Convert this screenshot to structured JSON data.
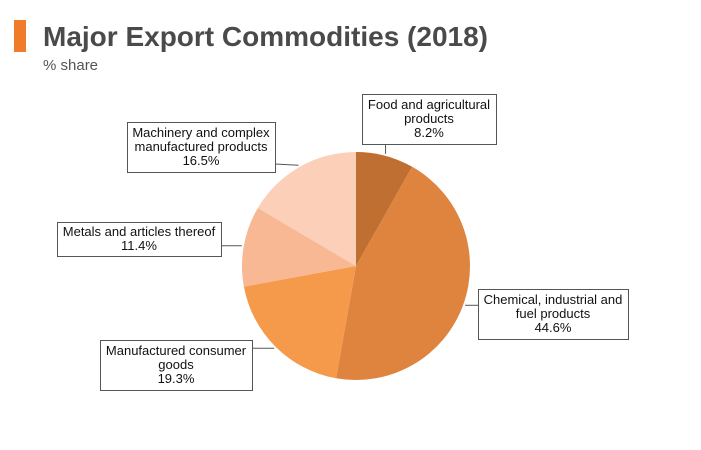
{
  "header": {
    "title": "Major Export Commodities (2018)",
    "subtitle": "% share",
    "accent_color": "#f07c29"
  },
  "chart_data": {
    "type": "pie",
    "title": "Major Export Commodities (2018)",
    "subtitle": "% share",
    "start": "12 o'clock, clockwise",
    "slices": [
      {
        "label": [
          "Food and agricultural",
          "products"
        ],
        "value": 8.2,
        "value_text": "8.2%",
        "color": "#bf6f32"
      },
      {
        "label": [
          "Chemical, industrial and",
          "fuel products"
        ],
        "value": 44.6,
        "value_text": "44.6%",
        "color": "#de843e"
      },
      {
        "label": [
          "Manufactured consumer",
          "goods"
        ],
        "value": 19.3,
        "value_text": "19.3%",
        "color": "#f59a4a"
      },
      {
        "label": [
          "Metals and articles thereof"
        ],
        "value": 11.4,
        "value_text": "11.4%",
        "color": "#f7b893"
      },
      {
        "label": [
          "Machinery and complex",
          "manufactured products"
        ],
        "value": 16.5,
        "value_text": "16.5%",
        "color": "#fbcfb8"
      }
    ]
  }
}
